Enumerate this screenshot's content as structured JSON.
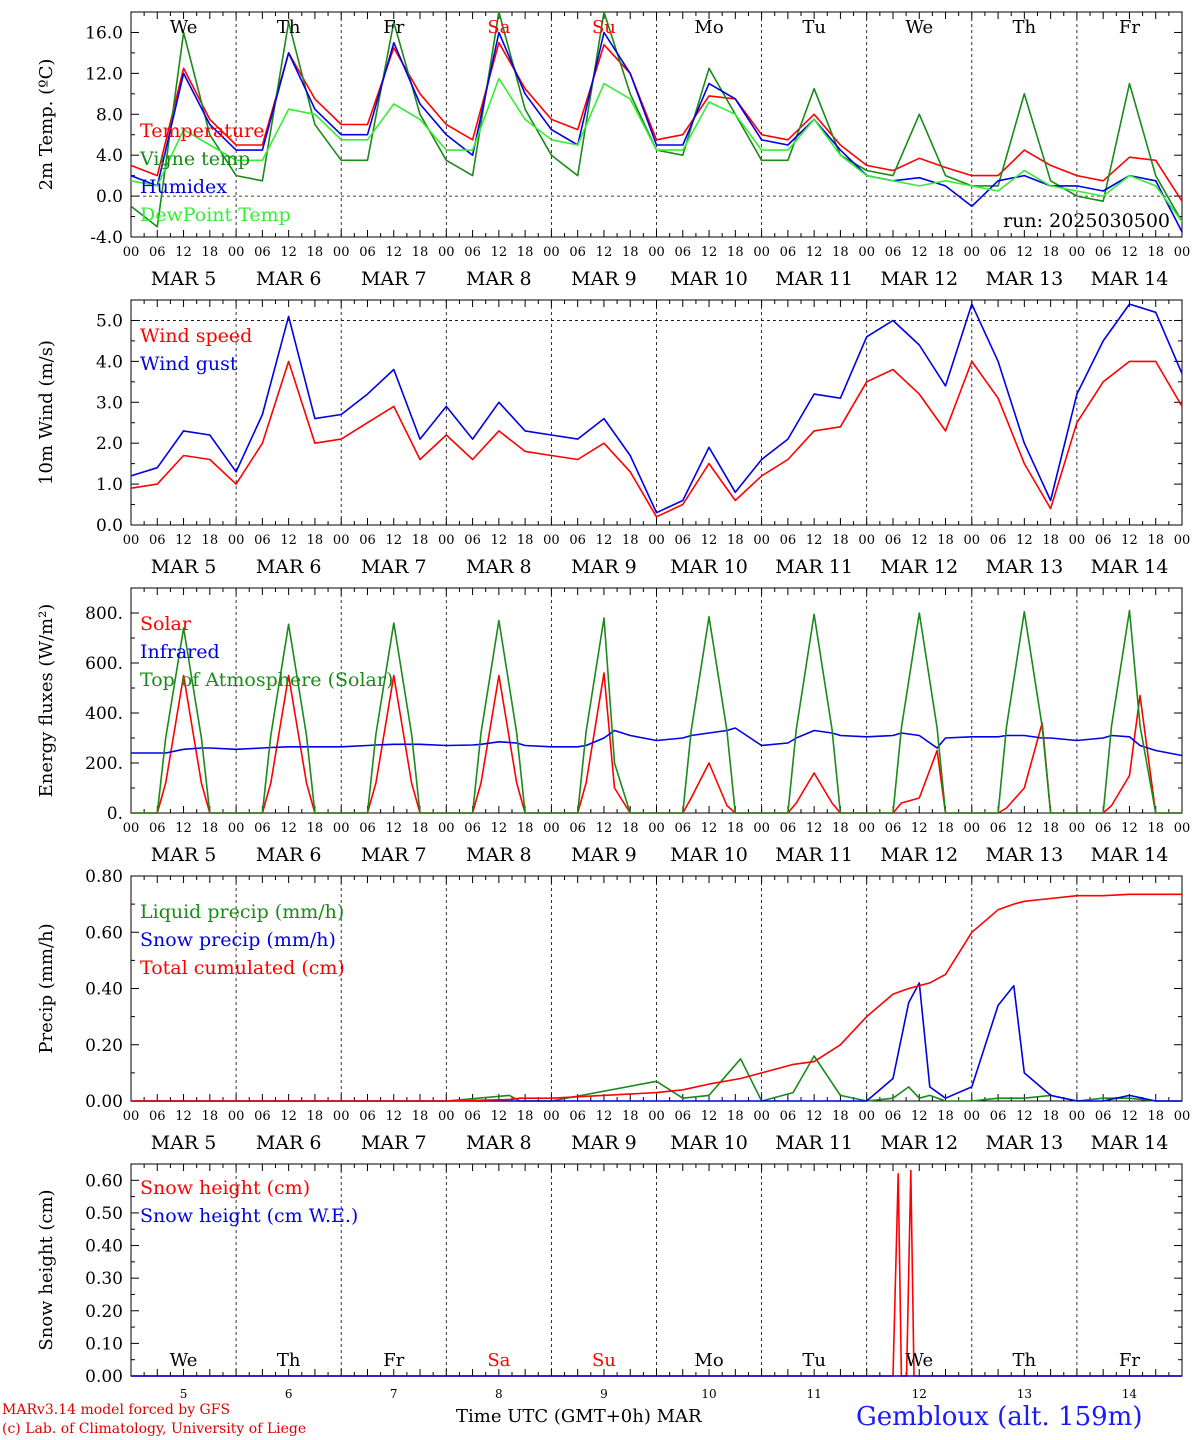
{
  "days": {
    "top": [
      "We",
      "Th",
      "Fr",
      "Sa",
      "Su",
      "Mo",
      "Tu",
      "We",
      "Th",
      "Fr"
    ],
    "weekend_flags": [
      false,
      false,
      false,
      true,
      true,
      false,
      false,
      false,
      false,
      false
    ],
    "dates": [
      "MAR  5",
      "MAR  6",
      "MAR  7",
      "MAR  8",
      "MAR  9",
      "MAR 10",
      "MAR 11",
      "MAR 12",
      "MAR 13",
      "MAR 14"
    ],
    "numbers": [
      "5",
      "6",
      "7",
      "8",
      "9",
      "10",
      "11",
      "12",
      "13",
      "14"
    ],
    "hours": [
      "00",
      "06",
      "12",
      "18"
    ],
    "last_hour": "00"
  },
  "colors": {
    "red": "#ff0000",
    "green": "#1a8a1a",
    "blue": "#0000e6",
    "lightgreen": "#33ee33",
    "weekend": "#ff0000",
    "station": "#1a1aff"
  },
  "chart_data": [
    {
      "type": "line",
      "ylabel": "2m Temp. (ºC)",
      "ylim": [
        -4.0,
        18.0
      ],
      "yticks": [
        "-4.0",
        "0.0",
        "4.0",
        "8.0",
        "12.0",
        "16.0"
      ],
      "ytick_values": [
        -4,
        0,
        4,
        8,
        12,
        16
      ],
      "ref_line": 0,
      "annotation": "run: 2025030500",
      "x_days": [
        0,
        0.25,
        0.5,
        0.75,
        1,
        1.25,
        1.5,
        1.75,
        2,
        2.25,
        2.5,
        2.75,
        3,
        3.25,
        3.5,
        3.75,
        4,
        4.25,
        4.5,
        4.75,
        5,
        5.25,
        5.5,
        5.75,
        6,
        6.25,
        6.5,
        6.75,
        7,
        7.25,
        7.5,
        7.75,
        8,
        8.25,
        8.5,
        8.75,
        9,
        9.25,
        9.5,
        9.75,
        10
      ],
      "series": [
        {
          "name": "Temperature",
          "color": "#ff0000",
          "values": [
            3.0,
            2.0,
            12.5,
            7.5,
            5.0,
            5.0,
            14.0,
            9.5,
            7.0,
            7.0,
            14.5,
            10.0,
            7.0,
            5.5,
            15.0,
            10.5,
            7.5,
            6.5,
            14.8,
            12.0,
            5.5,
            6.0,
            9.8,
            9.5,
            6.0,
            5.5,
            8.0,
            5.0,
            3.0,
            2.5,
            3.7,
            2.8,
            2.0,
            2.0,
            4.5,
            3.0,
            2.0,
            1.5,
            3.8,
            3.5,
            -0.5
          ]
        },
        {
          "name": "Vigne temp",
          "color": "#1a8a1a",
          "values": [
            -1.0,
            -3.0,
            16.0,
            6.0,
            2.0,
            1.5,
            17.0,
            7.0,
            3.5,
            3.5,
            17.0,
            8.0,
            3.5,
            2.0,
            18.0,
            8.5,
            4.0,
            2.0,
            18.0,
            10.0,
            4.5,
            4.0,
            12.5,
            8.0,
            3.5,
            3.5,
            10.5,
            4.0,
            2.5,
            2.0,
            8.0,
            2.0,
            1.0,
            1.0,
            10.0,
            1.5,
            0.0,
            -0.5,
            11.0,
            2.0,
            -2.5
          ]
        },
        {
          "name": "Humidex",
          "color": "#0000e6",
          "values": [
            2.0,
            1.0,
            12.0,
            7.0,
            4.5,
            4.5,
            14.0,
            8.5,
            6.0,
            6.0,
            15.0,
            9.0,
            6.0,
            4.0,
            16.0,
            10.0,
            6.5,
            5.0,
            16.0,
            12.0,
            5.0,
            5.0,
            11.0,
            9.5,
            5.5,
            5.0,
            7.5,
            4.5,
            2.0,
            1.5,
            1.8,
            1.0,
            -1.0,
            1.5,
            2.0,
            1.0,
            1.0,
            0.5,
            2.0,
            1.5,
            -3.5
          ]
        },
        {
          "name": "DewPoint Temp",
          "color": "#33ee33",
          "values": [
            1.5,
            1.0,
            6.5,
            5.0,
            3.5,
            3.5,
            8.5,
            8.0,
            5.5,
            5.5,
            9.0,
            7.5,
            4.5,
            4.5,
            11.5,
            7.5,
            5.5,
            5.0,
            11.0,
            9.5,
            4.5,
            4.5,
            9.2,
            8.0,
            4.5,
            4.5,
            7.5,
            4.0,
            2.0,
            1.5,
            1.0,
            1.5,
            1.0,
            0.5,
            2.5,
            1.0,
            0.5,
            0.0,
            2.0,
            1.0,
            -2.5
          ]
        }
      ]
    },
    {
      "type": "line",
      "ylabel": "10m Wind (m/s)",
      "ylim": [
        0.0,
        5.5
      ],
      "yticks": [
        "0.0",
        "1.0",
        "2.0",
        "3.0",
        "4.0",
        "5.0"
      ],
      "ytick_values": [
        0,
        1,
        2,
        3,
        4,
        5
      ],
      "ref_line": 5,
      "annotation": "",
      "x_days": [
        0,
        0.25,
        0.5,
        0.75,
        1,
        1.25,
        1.5,
        1.75,
        2,
        2.25,
        2.5,
        2.75,
        3,
        3.25,
        3.5,
        3.75,
        4,
        4.25,
        4.5,
        4.75,
        5,
        5.25,
        5.5,
        5.75,
        6,
        6.25,
        6.5,
        6.75,
        7,
        7.25,
        7.5,
        7.75,
        8,
        8.25,
        8.5,
        8.75,
        9,
        9.25,
        9.5,
        9.75,
        10
      ],
      "series": [
        {
          "name": "Wind speed",
          "color": "#ff0000",
          "values": [
            0.9,
            1.0,
            1.7,
            1.6,
            1.0,
            2.0,
            4.0,
            2.0,
            2.1,
            2.5,
            2.9,
            1.6,
            2.2,
            1.6,
            2.3,
            1.8,
            1.7,
            1.6,
            2.0,
            1.3,
            0.2,
            0.5,
            1.5,
            0.6,
            1.2,
            1.6,
            2.3,
            2.4,
            3.5,
            3.8,
            3.2,
            2.3,
            4.0,
            3.1,
            1.5,
            0.4,
            2.5,
            3.5,
            4.0,
            4.0,
            2.9
          ]
        },
        {
          "name": "Wind gust",
          "color": "#0000e6",
          "values": [
            1.2,
            1.4,
            2.3,
            2.2,
            1.3,
            2.7,
            5.1,
            2.6,
            2.7,
            3.2,
            3.8,
            2.1,
            2.9,
            2.1,
            3.0,
            2.3,
            2.2,
            2.1,
            2.6,
            1.7,
            0.3,
            0.6,
            1.9,
            0.8,
            1.6,
            2.1,
            3.2,
            3.1,
            4.6,
            5.0,
            4.4,
            3.4,
            5.4,
            4.0,
            2.0,
            0.6,
            3.2,
            4.5,
            5.4,
            5.2,
            3.7
          ]
        }
      ]
    },
    {
      "type": "line",
      "ylabel": "Energy fluxes (W/m²)",
      "ylim": [
        0,
        900
      ],
      "yticks": [
        "0.",
        "200.",
        "400.",
        "600.",
        "800."
      ],
      "ytick_values": [
        0,
        200,
        400,
        600,
        800
      ],
      "ref_line": null,
      "annotation": "",
      "x_days": [
        0,
        0.25,
        0.33,
        0.5,
        0.67,
        0.75,
        1,
        1.25,
        1.33,
        1.5,
        1.67,
        1.75,
        2,
        2.25,
        2.33,
        2.5,
        2.67,
        2.75,
        3,
        3.25,
        3.33,
        3.5,
        3.67,
        3.75,
        4,
        4.25,
        4.33,
        4.5,
        4.6,
        4.75,
        5,
        5.25,
        5.33,
        5.5,
        5.67,
        5.75,
        6,
        6.25,
        6.33,
        6.5,
        6.67,
        6.75,
        7,
        7.25,
        7.33,
        7.5,
        7.67,
        7.75,
        8,
        8.25,
        8.33,
        8.5,
        8.67,
        8.75,
        9,
        9.25,
        9.33,
        9.5,
        9.6,
        9.75,
        10
      ],
      "series": [
        {
          "name": "Solar",
          "color": "#ff0000",
          "values": [
            0,
            0,
            120,
            550,
            120,
            0,
            0,
            0,
            120,
            550,
            120,
            0,
            0,
            0,
            120,
            550,
            120,
            0,
            0,
            0,
            120,
            550,
            120,
            0,
            0,
            0,
            120,
            560,
            100,
            0,
            0,
            0,
            60,
            200,
            30,
            0,
            0,
            0,
            40,
            160,
            40,
            0,
            0,
            0,
            40,
            60,
            250,
            0,
            0,
            0,
            20,
            100,
            360,
            0,
            0,
            0,
            30,
            150,
            470,
            0,
            0
          ]
        },
        {
          "name": "Infrared",
          "color": "#0000e6",
          "values": [
            240,
            240,
            240,
            255,
            260,
            260,
            255,
            260,
            262,
            265,
            265,
            265,
            265,
            270,
            272,
            275,
            275,
            275,
            270,
            272,
            275,
            285,
            280,
            270,
            265,
            265,
            270,
            300,
            330,
            310,
            290,
            300,
            310,
            320,
            330,
            340,
            270,
            280,
            300,
            330,
            320,
            310,
            305,
            310,
            320,
            310,
            260,
            300,
            305,
            305,
            310,
            310,
            300,
            300,
            290,
            300,
            310,
            305,
            270,
            250,
            230
          ]
        },
        {
          "name": "Top of Atmosphere (Solar)",
          "color": "#1a8a1a",
          "values": [
            0,
            0,
            300,
            740,
            300,
            0,
            0,
            0,
            310,
            755,
            310,
            0,
            0,
            0,
            315,
            760,
            315,
            0,
            0,
            0,
            320,
            770,
            320,
            0,
            0,
            0,
            325,
            780,
            200,
            0,
            0,
            0,
            330,
            785,
            330,
            0,
            0,
            0,
            335,
            795,
            335,
            0,
            0,
            0,
            340,
            800,
            340,
            0,
            0,
            0,
            345,
            805,
            345,
            0,
            0,
            0,
            350,
            810,
            350,
            0,
            0
          ]
        }
      ]
    },
    {
      "type": "line",
      "ylabel": "Precip (mm/h)",
      "ylim": [
        0.0,
        0.8
      ],
      "yticks": [
        "0.00",
        "0.20",
        "0.40",
        "0.60",
        "0.80"
      ],
      "ytick_values": [
        0,
        0.2,
        0.4,
        0.6,
        0.8
      ],
      "ref_line": null,
      "annotation": "",
      "x_days": [
        0,
        1,
        2,
        3,
        3.6,
        3.7,
        4,
        5,
        5.25,
        5.5,
        5.8,
        6,
        6.3,
        6.5,
        6.75,
        7,
        7.25,
        7.4,
        7.5,
        7.6,
        7.75,
        8,
        8.25,
        8.4,
        8.5,
        8.75,
        9,
        9.25,
        9.5,
        9.75,
        10
      ],
      "series": [
        {
          "name": "Liquid precip (mm/h)",
          "color": "#1a8a1a",
          "values": [
            0,
            0,
            0,
            0,
            0.02,
            0,
            0,
            0.07,
            0.01,
            0.02,
            0.15,
            0,
            0.03,
            0.16,
            0.02,
            0,
            0.01,
            0.05,
            0.01,
            0.02,
            0,
            0,
            0.01,
            0.01,
            0.01,
            0.02,
            0,
            0.01,
            0.01,
            0,
            0
          ]
        },
        {
          "name": "Snow precip (mm/h)",
          "color": "#0000e6",
          "values": [
            0,
            0,
            0,
            0,
            0,
            0,
            0,
            0,
            0,
            0,
            0,
            0,
            0,
            0,
            0,
            0,
            0.08,
            0.35,
            0.42,
            0.05,
            0.01,
            0.05,
            0.34,
            0.41,
            0.1,
            0.02,
            0,
            0,
            0.02,
            0,
            0
          ]
        },
        {
          "name": "Total cumulated (cm)",
          "color": "#ff0000",
          "values": [
            0,
            0,
            0,
            0,
            0.005,
            0.01,
            0.01,
            0.03,
            0.04,
            0.06,
            0.08,
            0.1,
            0.13,
            0.14,
            0.2,
            0.3,
            0.38,
            0.4,
            0.41,
            0.42,
            0.45,
            0.6,
            0.68,
            0.7,
            0.71,
            0.72,
            0.73,
            0.73,
            0.735,
            0.735,
            0.735
          ]
        }
      ]
    },
    {
      "type": "line",
      "ylabel": "Snow height (cm)",
      "ylim": [
        0.0,
        0.65
      ],
      "yticks": [
        "0.00",
        "0.10",
        "0.20",
        "0.30",
        "0.40",
        "0.50",
        "0.60"
      ],
      "ytick_values": [
        0,
        0.1,
        0.2,
        0.3,
        0.4,
        0.5,
        0.6
      ],
      "ref_line": null,
      "annotation": "",
      "x_days": [
        0,
        7.25,
        7.3,
        7.33,
        7.38,
        7.42,
        7.45,
        7.5,
        10
      ],
      "series": [
        {
          "name": "Snow height (cm)",
          "color": "#ff0000",
          "values": [
            0,
            0,
            0.62,
            0,
            0,
            0.63,
            0,
            0,
            0
          ]
        },
        {
          "name": "Snow height (cm W.E.)",
          "color": "#0000e6",
          "values": [
            0,
            0,
            0,
            0,
            0,
            0,
            0,
            0,
            0
          ]
        }
      ]
    }
  ],
  "footer": {
    "credit_line1": "MARv3.14 model forced by GFS",
    "credit_line2": "(c) Lab. of Climatology, University of Liege",
    "x_title": "Time UTC (GMT+0h) MAR",
    "station": "Gembloux (alt. 159m)"
  }
}
